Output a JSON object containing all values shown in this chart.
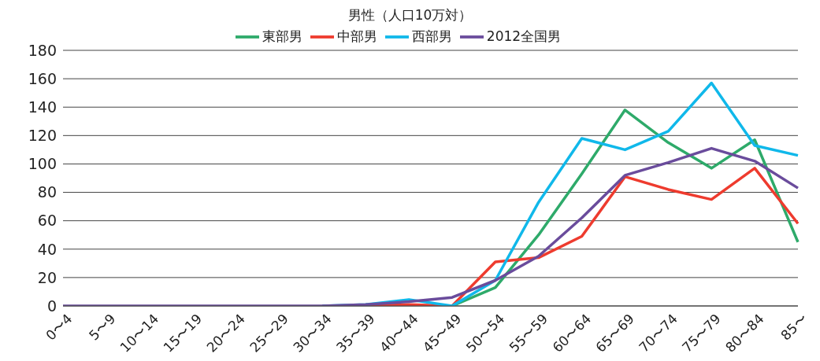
{
  "chart_data": {
    "type": "line",
    "title": "男性（人口10万対）",
    "categories": [
      "0〜4",
      "5〜9",
      "10〜14",
      "15〜19",
      "20〜24",
      "25〜29",
      "30〜34",
      "35〜39",
      "40〜44",
      "45〜49",
      "50〜54",
      "55〜59",
      "60〜64",
      "65〜69",
      "70〜74",
      "75〜79",
      "80〜84",
      "85〜"
    ],
    "series": [
      {
        "name": "東部男",
        "color": "#2eaa6a",
        "values": [
          null,
          null,
          null,
          null,
          null,
          null,
          null,
          null,
          0,
          0,
          13,
          50,
          93,
          138,
          115,
          97,
          117,
          45
        ]
      },
      {
        "name": "中部男",
        "color": "#ee3b2e",
        "values": [
          null,
          null,
          null,
          null,
          null,
          null,
          0,
          0,
          1,
          0,
          31,
          34,
          49,
          91,
          82,
          75,
          97,
          58
        ]
      },
      {
        "name": "西部男",
        "color": "#10b8ea",
        "values": [
          null,
          null,
          null,
          null,
          null,
          null,
          0,
          1,
          4.5,
          0,
          18,
          73,
          118,
          110,
          123,
          157,
          113,
          106
        ]
      },
      {
        "name": "2012全国男",
        "color": "#6a4c9c",
        "values": [
          0,
          0,
          0,
          0,
          0,
          0,
          0,
          1,
          3,
          6,
          18,
          35,
          62,
          92,
          101,
          111,
          102,
          83
        ]
      }
    ],
    "ylim": [
      0,
      180
    ],
    "yticks": [
      0,
      20,
      40,
      60,
      80,
      100,
      120,
      140,
      160,
      180
    ],
    "grid": "y",
    "legend": "top",
    "marker": "none",
    "line_style": "solid"
  }
}
